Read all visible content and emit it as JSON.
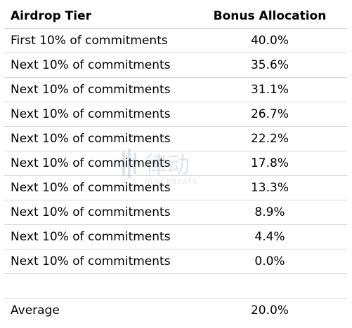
{
  "header": {
    "tier": "Airdrop Tier",
    "bonus": "Bonus Allocation"
  },
  "rows": [
    {
      "tier": "First 10% of commitments",
      "bonus": "40.0%"
    },
    {
      "tier": "Next 10% of commitments",
      "bonus": "35.6%"
    },
    {
      "tier": "Next 10% of commitments",
      "bonus": "31.1%"
    },
    {
      "tier": "Next 10% of commitments",
      "bonus": "26.7%"
    },
    {
      "tier": "Next 10% of commitments",
      "bonus": "22.2%"
    },
    {
      "tier": "Next 10% of commitments",
      "bonus": "17.8%"
    },
    {
      "tier": "Next 10% of commitments",
      "bonus": "13.3%"
    },
    {
      "tier": "Next 10% of commitments",
      "bonus": "8.9%"
    },
    {
      "tier": "Next 10% of commitments",
      "bonus": "4.4%"
    },
    {
      "tier": "Next 10% of commitments",
      "bonus": "0.0%"
    }
  ],
  "footer": {
    "tier": "Average",
    "bonus": "20.0%"
  },
  "watermark": {
    "text": "律动",
    "subtext": "BLOCKBEATS"
  }
}
